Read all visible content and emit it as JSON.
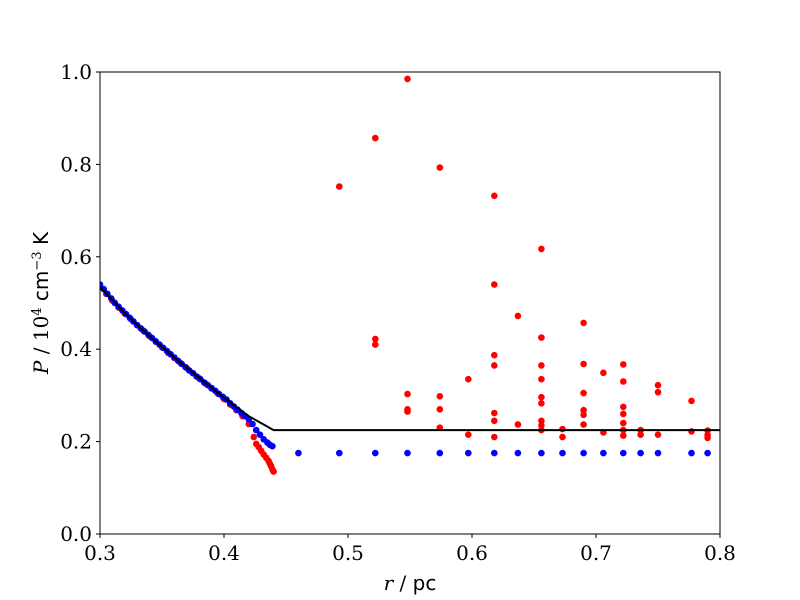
{
  "chart_data": {
    "type": "scatter",
    "title": "",
    "x_axis": {
      "label_var": "r",
      "label_sep": " / ",
      "label_unit": "pc",
      "range": [
        0.3,
        0.8
      ],
      "ticks": [
        0.3,
        0.4,
        0.5,
        0.6,
        0.7,
        0.8
      ],
      "tick_labels": [
        "0.3",
        "0.4",
        "0.5",
        "0.6",
        "0.7",
        "0.8"
      ]
    },
    "y_axis": {
      "label_var": "P",
      "label_sep": " / ",
      "label_num": "10",
      "label_exp": "4",
      "label_unit": " cm",
      "label_unit_exp": "−3",
      "label_unit_tail": " K",
      "range": [
        0.0,
        1.0
      ],
      "ticks": [
        0.0,
        0.2,
        0.4,
        0.6,
        0.8,
        1.0
      ],
      "tick_labels": [
        "0.0",
        "0.2",
        "0.4",
        "0.6",
        "0.8",
        "1.0"
      ]
    },
    "grid": false,
    "legend": "none",
    "series": [
      {
        "color": "#ff0000",
        "kind": "scatter",
        "points": [
          [
            0.3,
            0.535
          ],
          [
            0.305,
            0.52
          ],
          [
            0.31,
            0.505
          ],
          [
            0.315,
            0.49
          ],
          [
            0.32,
            0.477
          ],
          [
            0.325,
            0.465
          ],
          [
            0.33,
            0.452
          ],
          [
            0.335,
            0.44
          ],
          [
            0.34,
            0.428
          ],
          [
            0.345,
            0.416
          ],
          [
            0.35,
            0.404
          ],
          [
            0.355,
            0.392
          ],
          [
            0.36,
            0.381
          ],
          [
            0.365,
            0.37
          ],
          [
            0.37,
            0.359
          ],
          [
            0.375,
            0.348
          ],
          [
            0.38,
            0.337
          ],
          [
            0.385,
            0.326
          ],
          [
            0.39,
            0.315
          ],
          [
            0.395,
            0.304
          ],
          [
            0.4,
            0.292
          ],
          [
            0.405,
            0.28
          ],
          [
            0.41,
            0.268
          ],
          [
            0.415,
            0.255
          ],
          [
            0.42,
            0.238
          ],
          [
            0.424,
            0.21
          ],
          [
            0.426,
            0.195
          ],
          [
            0.428,
            0.188
          ],
          [
            0.43,
            0.18
          ],
          [
            0.432,
            0.172
          ],
          [
            0.434,
            0.165
          ],
          [
            0.436,
            0.158
          ],
          [
            0.437,
            0.152
          ],
          [
            0.438,
            0.147
          ],
          [
            0.439,
            0.14
          ],
          [
            0.44,
            0.135
          ],
          [
            0.493,
            0.752
          ],
          [
            0.522,
            0.857
          ],
          [
            0.522,
            0.422
          ],
          [
            0.522,
            0.41
          ],
          [
            0.548,
            0.985
          ],
          [
            0.548,
            0.303
          ],
          [
            0.548,
            0.27
          ],
          [
            0.548,
            0.265
          ],
          [
            0.574,
            0.793
          ],
          [
            0.574,
            0.298
          ],
          [
            0.574,
            0.27
          ],
          [
            0.574,
            0.23
          ],
          [
            0.597,
            0.335
          ],
          [
            0.597,
            0.215
          ],
          [
            0.618,
            0.732
          ],
          [
            0.618,
            0.54
          ],
          [
            0.618,
            0.387
          ],
          [
            0.618,
            0.365
          ],
          [
            0.618,
            0.262
          ],
          [
            0.618,
            0.245
          ],
          [
            0.618,
            0.21
          ],
          [
            0.637,
            0.472
          ],
          [
            0.637,
            0.237
          ],
          [
            0.656,
            0.617
          ],
          [
            0.656,
            0.425
          ],
          [
            0.656,
            0.365
          ],
          [
            0.656,
            0.335
          ],
          [
            0.656,
            0.296
          ],
          [
            0.656,
            0.283
          ],
          [
            0.656,
            0.245
          ],
          [
            0.656,
            0.235
          ],
          [
            0.656,
            0.225
          ],
          [
            0.673,
            0.227
          ],
          [
            0.673,
            0.21
          ],
          [
            0.69,
            0.457
          ],
          [
            0.69,
            0.368
          ],
          [
            0.69,
            0.305
          ],
          [
            0.69,
            0.268
          ],
          [
            0.69,
            0.258
          ],
          [
            0.69,
            0.237
          ],
          [
            0.706,
            0.349
          ],
          [
            0.706,
            0.22
          ],
          [
            0.722,
            0.367
          ],
          [
            0.722,
            0.33
          ],
          [
            0.722,
            0.275
          ],
          [
            0.722,
            0.26
          ],
          [
            0.722,
            0.24
          ],
          [
            0.722,
            0.225
          ],
          [
            0.722,
            0.213
          ],
          [
            0.736,
            0.225
          ],
          [
            0.736,
            0.215
          ],
          [
            0.75,
            0.322
          ],
          [
            0.75,
            0.307
          ],
          [
            0.75,
            0.215
          ],
          [
            0.777,
            0.288
          ],
          [
            0.777,
            0.222
          ],
          [
            0.79,
            0.224
          ],
          [
            0.79,
            0.214
          ],
          [
            0.79,
            0.208
          ]
        ]
      },
      {
        "color": "#0000ff",
        "kind": "scatter",
        "points": [
          [
            0.3,
            0.54
          ],
          [
            0.303,
            0.53
          ],
          [
            0.306,
            0.52
          ],
          [
            0.309,
            0.51
          ],
          [
            0.312,
            0.5
          ],
          [
            0.315,
            0.492
          ],
          [
            0.318,
            0.484
          ],
          [
            0.321,
            0.476
          ],
          [
            0.324,
            0.468
          ],
          [
            0.327,
            0.46
          ],
          [
            0.33,
            0.452
          ],
          [
            0.333,
            0.445
          ],
          [
            0.336,
            0.438
          ],
          [
            0.339,
            0.431
          ],
          [
            0.342,
            0.424
          ],
          [
            0.345,
            0.417
          ],
          [
            0.348,
            0.41
          ],
          [
            0.351,
            0.403
          ],
          [
            0.354,
            0.396
          ],
          [
            0.357,
            0.389
          ],
          [
            0.36,
            0.382
          ],
          [
            0.363,
            0.375
          ],
          [
            0.366,
            0.368
          ],
          [
            0.369,
            0.361
          ],
          [
            0.372,
            0.354
          ],
          [
            0.375,
            0.348
          ],
          [
            0.378,
            0.341
          ],
          [
            0.381,
            0.335
          ],
          [
            0.384,
            0.328
          ],
          [
            0.387,
            0.322
          ],
          [
            0.39,
            0.316
          ],
          [
            0.393,
            0.31
          ],
          [
            0.396,
            0.303
          ],
          [
            0.399,
            0.297
          ],
          [
            0.402,
            0.291
          ],
          [
            0.405,
            0.283
          ],
          [
            0.408,
            0.276
          ],
          [
            0.411,
            0.269
          ],
          [
            0.414,
            0.262
          ],
          [
            0.417,
            0.255
          ],
          [
            0.42,
            0.248
          ],
          [
            0.423,
            0.238
          ],
          [
            0.426,
            0.225
          ],
          [
            0.429,
            0.215
          ],
          [
            0.432,
            0.205
          ],
          [
            0.435,
            0.198
          ],
          [
            0.437,
            0.193
          ],
          [
            0.439,
            0.19
          ],
          [
            0.46,
            0.175
          ],
          [
            0.493,
            0.175
          ],
          [
            0.522,
            0.175
          ],
          [
            0.548,
            0.175
          ],
          [
            0.574,
            0.175
          ],
          [
            0.597,
            0.175
          ],
          [
            0.618,
            0.175
          ],
          [
            0.637,
            0.175
          ],
          [
            0.656,
            0.175
          ],
          [
            0.673,
            0.175
          ],
          [
            0.69,
            0.175
          ],
          [
            0.706,
            0.175
          ],
          [
            0.722,
            0.175
          ],
          [
            0.736,
            0.175
          ],
          [
            0.75,
            0.175
          ],
          [
            0.777,
            0.175
          ],
          [
            0.79,
            0.175
          ]
        ]
      },
      {
        "color": "#000000",
        "kind": "line",
        "points": [
          [
            0.3,
            0.535
          ],
          [
            0.32,
            0.478
          ],
          [
            0.34,
            0.428
          ],
          [
            0.36,
            0.382
          ],
          [
            0.38,
            0.338
          ],
          [
            0.4,
            0.295
          ],
          [
            0.42,
            0.255
          ],
          [
            0.43,
            0.24
          ],
          [
            0.44,
            0.225
          ],
          [
            0.8,
            0.225
          ]
        ]
      }
    ]
  }
}
